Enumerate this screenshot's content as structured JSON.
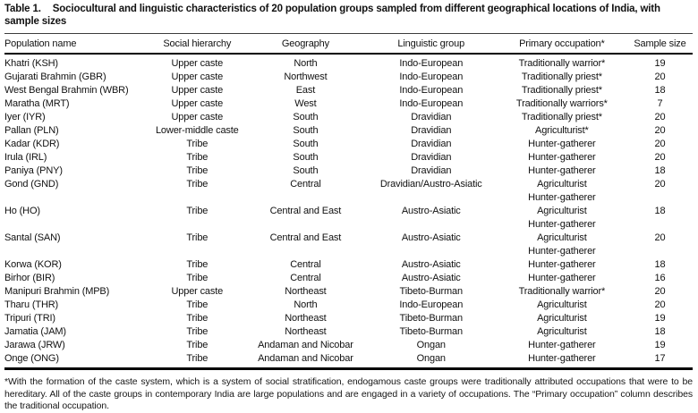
{
  "table": {
    "label": "Table 1.",
    "caption": "Sociocultural and linguistic characteristics of 20 population groups sampled from different geographical locations of India, with sample sizes",
    "columns": [
      "Population name",
      "Social hierarchy",
      "Geography",
      "Linguistic group",
      "Primary occupation*",
      "Sample size"
    ],
    "rows": [
      {
        "name": "Khatri (KSH)",
        "hierarchy": "Upper caste",
        "geography": "North",
        "linguistic": "Indo-European",
        "occupation": [
          "Traditionally warrior*"
        ],
        "sample_size": "19"
      },
      {
        "name": "Gujarati Brahmin (GBR)",
        "hierarchy": "Upper caste",
        "geography": "Northwest",
        "linguistic": "Indo-European",
        "occupation": [
          "Traditionally priest*"
        ],
        "sample_size": "20"
      },
      {
        "name": "West Bengal Brahmin (WBR)",
        "hierarchy": "Upper caste",
        "geography": "East",
        "linguistic": "Indo-European",
        "occupation": [
          "Traditionally priest*"
        ],
        "sample_size": "18"
      },
      {
        "name": "Maratha (MRT)",
        "hierarchy": "Upper caste",
        "geography": "West",
        "linguistic": "Indo-European",
        "occupation": [
          "Traditionally warriors*"
        ],
        "sample_size": "7"
      },
      {
        "name": "Iyer (IYR)",
        "hierarchy": "Upper caste",
        "geography": "South",
        "linguistic": "Dravidian",
        "occupation": [
          "Traditionally priest*"
        ],
        "sample_size": "20"
      },
      {
        "name": "Pallan (PLN)",
        "hierarchy": "Lower-middle caste",
        "geography": "South",
        "linguistic": "Dravidian",
        "occupation": [
          "Agriculturist*"
        ],
        "sample_size": "20"
      },
      {
        "name": "Kadar (KDR)",
        "hierarchy": "Tribe",
        "geography": "South",
        "linguistic": "Dravidian",
        "occupation": [
          "Hunter-gatherer"
        ],
        "sample_size": "20"
      },
      {
        "name": "Irula (IRL)",
        "hierarchy": "Tribe",
        "geography": "South",
        "linguistic": "Dravidian",
        "occupation": [
          "Hunter-gatherer"
        ],
        "sample_size": "20"
      },
      {
        "name": "Paniya (PNY)",
        "hierarchy": "Tribe",
        "geography": "South",
        "linguistic": "Dravidian",
        "occupation": [
          "Hunter-gatherer"
        ],
        "sample_size": "18"
      },
      {
        "name": "Gond (GND)",
        "hierarchy": "Tribe",
        "geography": "Central",
        "linguistic": "Dravidian/Austro-Asiatic",
        "occupation": [
          "Agriculturist",
          "Hunter-gatherer"
        ],
        "sample_size": "20"
      },
      {
        "name": "Ho (HO)",
        "hierarchy": "Tribe",
        "geography": "Central and East",
        "linguistic": "Austro-Asiatic",
        "occupation": [
          "Agriculturist",
          "Hunter-gatherer"
        ],
        "sample_size": "18"
      },
      {
        "name": "Santal (SAN)",
        "hierarchy": "Tribe",
        "geography": "Central and East",
        "linguistic": "Austro-Asiatic",
        "occupation": [
          "Agriculturist",
          "Hunter-gatherer"
        ],
        "sample_size": "20"
      },
      {
        "name": "Korwa (KOR)",
        "hierarchy": "Tribe",
        "geography": "Central",
        "linguistic": "Austro-Asiatic",
        "occupation": [
          "Hunter-gatherer"
        ],
        "sample_size": "18"
      },
      {
        "name": "Birhor (BIR)",
        "hierarchy": "Tribe",
        "geography": "Central",
        "linguistic": "Austro-Asiatic",
        "occupation": [
          "Hunter-gatherer"
        ],
        "sample_size": "16"
      },
      {
        "name": "Manipuri Brahmin (MPB)",
        "hierarchy": "Upper caste",
        "geography": "Northeast",
        "linguistic": "Tibeto-Burman",
        "occupation": [
          "Traditionally warrior*"
        ],
        "sample_size": "20"
      },
      {
        "name": "Tharu (THR)",
        "hierarchy": "Tribe",
        "geography": "North",
        "linguistic": "Indo-European",
        "occupation": [
          "Agriculturist"
        ],
        "sample_size": "20"
      },
      {
        "name": "Tripuri (TRI)",
        "hierarchy": "Tribe",
        "geography": "Northeast",
        "linguistic": "Tibeto-Burman",
        "occupation": [
          "Agriculturist"
        ],
        "sample_size": "19"
      },
      {
        "name": "Jamatia (JAM)",
        "hierarchy": "Tribe",
        "geography": "Northeast",
        "linguistic": "Tibeto-Burman",
        "occupation": [
          "Agriculturist"
        ],
        "sample_size": "18"
      },
      {
        "name": "Jarawa (JRW)",
        "hierarchy": "Tribe",
        "geography": "Andaman and Nicobar",
        "linguistic": "Ongan",
        "occupation": [
          "Hunter-gatherer"
        ],
        "sample_size": "19"
      },
      {
        "name": "Onge (ONG)",
        "hierarchy": "Tribe",
        "geography": "Andaman and Nicobar",
        "linguistic": "Ongan",
        "occupation": [
          "Hunter-gatherer"
        ],
        "sample_size": "17"
      }
    ],
    "footnote": "*With the formation of the caste system, which is a system of social stratification, endogamous caste groups were traditionally attributed occupations that were to be hereditary. All of the caste groups in contemporary India are large populations and are engaged in a variety of occupations. The “Primary occupation” column describes the traditional occupation."
  }
}
